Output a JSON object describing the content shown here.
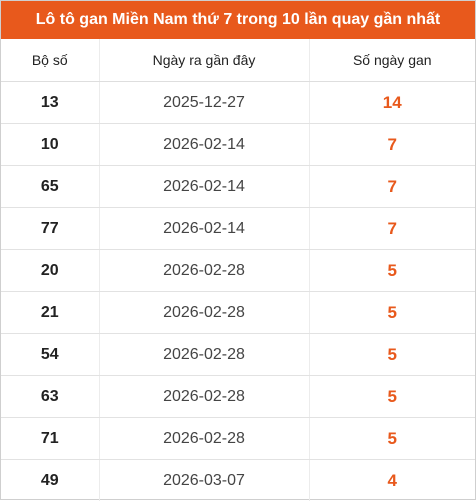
{
  "title": "Lô tô gan Miền Nam thứ 7 trong 10 lần quay gần nhất",
  "colors": {
    "accent": "#e8591c",
    "header_text": "#ffffff"
  },
  "columns": [
    "Bộ số",
    "Ngày ra gần đây",
    "Số ngày gan"
  ],
  "rows": [
    {
      "number": "13",
      "date": "2025-12-27",
      "days": "14"
    },
    {
      "number": "10",
      "date": "2026-02-14",
      "days": "7"
    },
    {
      "number": "65",
      "date": "2026-02-14",
      "days": "7"
    },
    {
      "number": "77",
      "date": "2026-02-14",
      "days": "7"
    },
    {
      "number": "20",
      "date": "2026-02-28",
      "days": "5"
    },
    {
      "number": "21",
      "date": "2026-02-28",
      "days": "5"
    },
    {
      "number": "54",
      "date": "2026-02-28",
      "days": "5"
    },
    {
      "number": "63",
      "date": "2026-02-28",
      "days": "5"
    },
    {
      "number": "71",
      "date": "2026-02-28",
      "days": "5"
    },
    {
      "number": "49",
      "date": "2026-03-07",
      "days": "4"
    }
  ]
}
